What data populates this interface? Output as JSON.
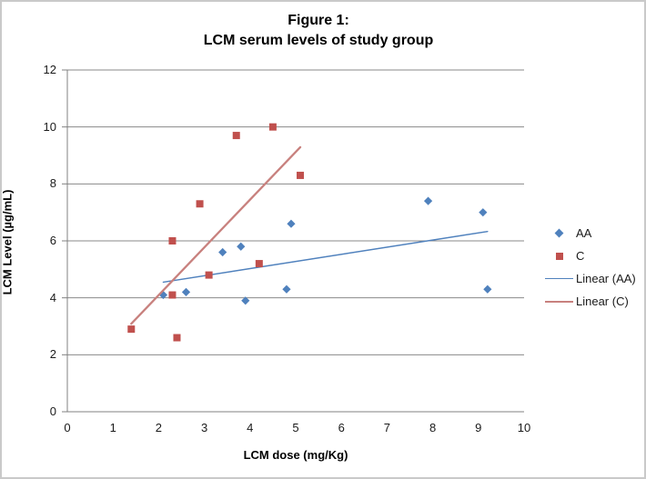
{
  "chart_data": {
    "type": "scatter",
    "title_lines": [
      "Figure 1:",
      "LCM serum levels of study group"
    ],
    "title": "Figure 1: LCM serum levels of study group",
    "xlabel": "LCM dose (mg/Kg)",
    "ylabel": "LCM Level (µg/mL)",
    "xlim": [
      0,
      10
    ],
    "ylim": [
      0,
      12
    ],
    "x_ticks": [
      0,
      1,
      2,
      3,
      4,
      5,
      6,
      7,
      8,
      9,
      10
    ],
    "y_ticks": [
      0,
      2,
      4,
      6,
      8,
      10,
      12
    ],
    "grid": "horizontal-only",
    "legend_position": "right",
    "legend": [
      "AA",
      "C",
      "Linear (AA)",
      "Linear (C)"
    ],
    "series": [
      {
        "name": "AA",
        "marker": "diamond",
        "color": "#4F81BD",
        "points": [
          [
            2.1,
            4.1
          ],
          [
            2.6,
            4.2
          ],
          [
            3.4,
            5.6
          ],
          [
            3.8,
            5.8
          ],
          [
            3.9,
            3.9
          ],
          [
            4.8,
            4.3
          ],
          [
            4.9,
            6.6
          ],
          [
            7.9,
            7.4
          ],
          [
            9.1,
            7.0
          ],
          [
            9.2,
            4.3
          ]
        ]
      },
      {
        "name": "C",
        "marker": "square",
        "color": "#C0504D",
        "points": [
          [
            1.4,
            2.9
          ],
          [
            2.3,
            4.1
          ],
          [
            2.3,
            6.0
          ],
          [
            2.4,
            2.6
          ],
          [
            2.9,
            7.3
          ],
          [
            3.1,
            4.8
          ],
          [
            3.7,
            9.7
          ],
          [
            4.2,
            5.2
          ],
          [
            4.5,
            10.0
          ],
          [
            5.1,
            8.3
          ]
        ]
      }
    ],
    "trendlines": [
      {
        "name": "Linear (AA)",
        "for_series": "AA",
        "color": "#4F81BD",
        "width": 1.4,
        "x1": 2.1,
        "y1": 4.55,
        "x2": 9.2,
        "y2": 6.33
      },
      {
        "name": "Linear (C)",
        "for_series": "C",
        "color": "#C8817E",
        "width": 2.3,
        "x1": 1.4,
        "y1": 3.09,
        "x2": 5.1,
        "y2": 9.29
      }
    ],
    "style": {
      "grid_color": "#898989",
      "axis_color": "#808080",
      "tick_label_color": "#1a1a1a"
    }
  }
}
